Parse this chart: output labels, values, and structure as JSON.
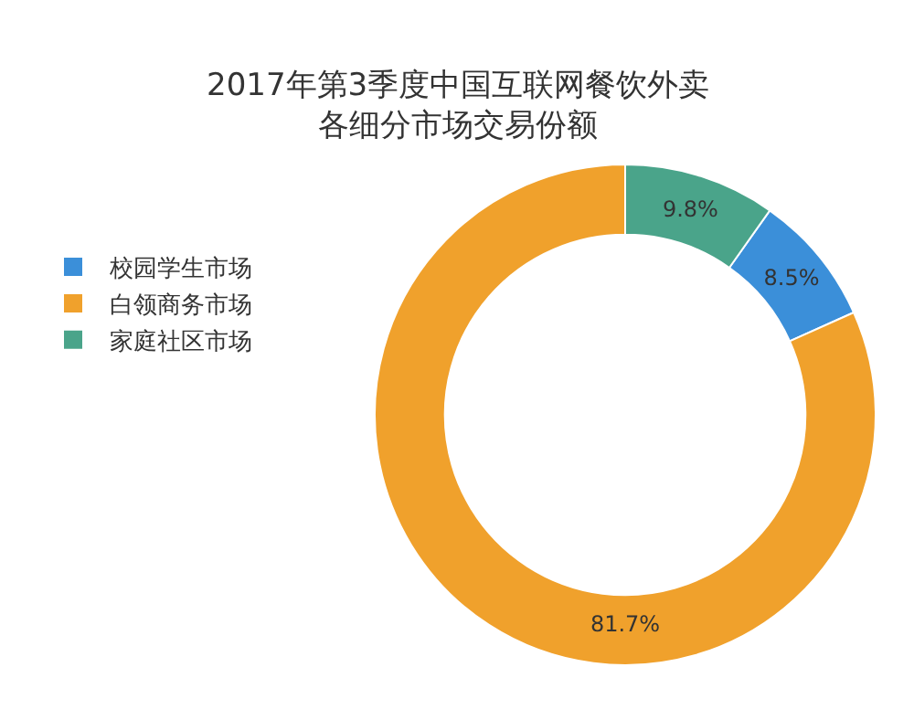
{
  "chart_data": {
    "type": "donut",
    "title": "2017年第3季度中国互联网餐饮外卖各细分市场交易份额",
    "categories": [
      "校园学生市场",
      "白领商务市场",
      "家庭社区市场"
    ],
    "values": [
      8.5,
      81.7,
      9.8
    ],
    "colors": [
      "#3b8fd9",
      "#f0a12c",
      "#4aa48a"
    ],
    "value_labels": [
      "8.5%",
      "81.7%",
      "9.8%"
    ],
    "legend": "left"
  }
}
